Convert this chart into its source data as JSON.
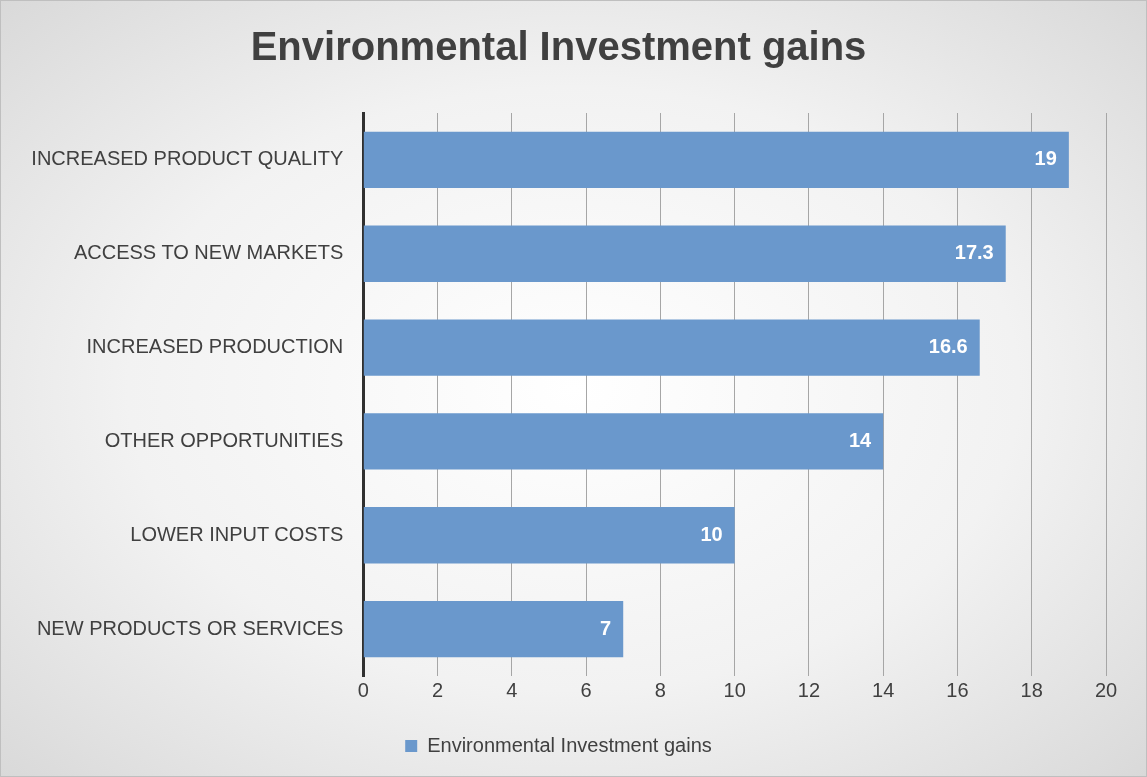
{
  "chart_data": {
    "type": "bar",
    "orientation": "horizontal",
    "title": "Environmental Investment gains",
    "categories": [
      "INCREASED PRODUCT QUALITY",
      "ACCESS TO NEW MARKETS",
      "INCREASED PRODUCTION",
      "OTHER OPPORTUNITIES",
      "LOWER INPUT COSTS",
      "NEW PRODUCTS OR SERVICES"
    ],
    "series": [
      {
        "name": "Environmental Investment gains",
        "color": "#6a98cc",
        "values": [
          19,
          17.3,
          16.6,
          14,
          10,
          7
        ]
      }
    ],
    "xlim": [
      0,
      20
    ],
    "xticks": [
      0,
      2,
      4,
      6,
      8,
      10,
      12,
      14,
      16,
      18,
      20
    ],
    "grid": "x",
    "legend": "bottom",
    "data_labels": true
  }
}
